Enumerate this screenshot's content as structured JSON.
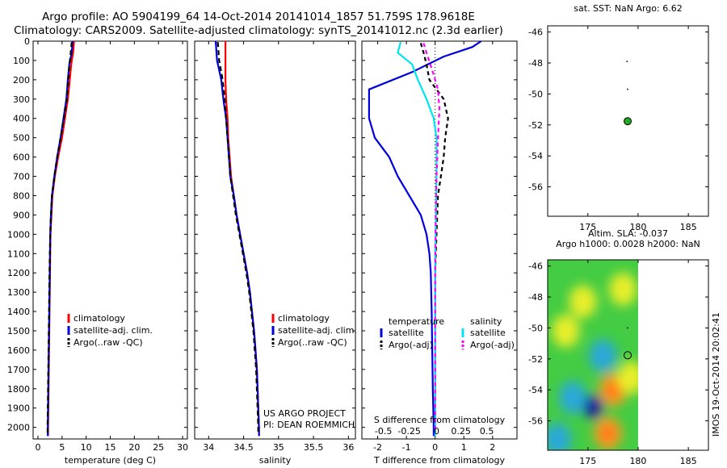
{
  "title": {
    "line1": "Argo profile: AO 5904199_64 14-Oct-2014 20141014_1857 51.759S 178.9618E",
    "line2": "Climatology: CARS2009. Satellite-adjusted climatology: synTS_20141012.nc (2.3d earlier)"
  },
  "colors": {
    "climatology": "#ff0000",
    "satellite": "#0000dd",
    "argo": "#000000",
    "sat_salinity": "#00e5ee",
    "argo_salinity": "#ff00ff"
  },
  "depth_axis": {
    "ylim": [
      0,
      2060
    ],
    "ticks": [
      0,
      100,
      200,
      300,
      400,
      500,
      600,
      700,
      800,
      900,
      1000,
      1100,
      1200,
      1300,
      1400,
      1500,
      1600,
      1700,
      1800,
      1900,
      2000
    ]
  },
  "chart_data": [
    {
      "id": "temperature",
      "type": "line",
      "xlabel": "temperature (deg C)",
      "xlim": [
        -1,
        31
      ],
      "xticks": [
        0,
        5,
        10,
        15,
        20,
        25,
        30
      ],
      "xtick_labels": [
        "0",
        "5",
        "10",
        "15",
        "20",
        "25",
        "30"
      ],
      "legend": {
        "placement": "bottom-center",
        "entries": [
          "climatology",
          "satellite-adj. clim.",
          "Argo(..raw -QC)"
        ]
      },
      "series": [
        {
          "name": "climatology",
          "color": "#ff0000",
          "dash": "",
          "points": [
            [
              7.5,
              0
            ],
            [
              7.3,
              60
            ],
            [
              6.9,
              120
            ],
            [
              6.6,
              200
            ],
            [
              6.2,
              300
            ],
            [
              5.6,
              400
            ],
            [
              5.0,
              500
            ],
            [
              4.2,
              600
            ],
            [
              3.5,
              700
            ],
            [
              3.0,
              800
            ],
            [
              2.8,
              900
            ],
            [
              2.6,
              1000
            ],
            [
              2.5,
              1200
            ],
            [
              2.4,
              1400
            ],
            [
              2.3,
              1600
            ],
            [
              2.2,
              1800
            ],
            [
              2.1,
              2000
            ],
            [
              2.1,
              2045
            ]
          ]
        },
        {
          "name": "satellite-adj. clim.",
          "color": "#0000dd",
          "dash": "",
          "points": [
            [
              7.2,
              0
            ],
            [
              7.0,
              60
            ],
            [
              6.5,
              120
            ],
            [
              6.2,
              200
            ],
            [
              5.9,
              300
            ],
            [
              5.3,
              400
            ],
            [
              4.7,
              500
            ],
            [
              4.0,
              600
            ],
            [
              3.4,
              700
            ],
            [
              2.9,
              800
            ],
            [
              2.7,
              900
            ],
            [
              2.55,
              1000
            ],
            [
              2.45,
              1200
            ],
            [
              2.35,
              1400
            ],
            [
              2.25,
              1600
            ],
            [
              2.15,
              1800
            ],
            [
              2.05,
              2000
            ],
            [
              2.05,
              2045
            ]
          ]
        },
        {
          "name": "Argo(..raw -QC)",
          "color": "#000000",
          "dash": "6,4",
          "points": [
            [
              7.0,
              5
            ],
            [
              6.8,
              60
            ],
            [
              6.5,
              130
            ],
            [
              6.3,
              200
            ],
            [
              6.0,
              300
            ],
            [
              5.4,
              400
            ],
            [
              4.7,
              500
            ],
            [
              4.0,
              600
            ],
            [
              3.4,
              700
            ],
            [
              2.9,
              800
            ],
            [
              2.7,
              900
            ],
            [
              2.55,
              1000
            ],
            [
              2.4,
              1200
            ],
            [
              2.3,
              1400
            ],
            [
              2.2,
              1600
            ],
            [
              2.1,
              1800
            ],
            [
              2.0,
              2000
            ],
            [
              2.0,
              2030
            ]
          ]
        }
      ]
    },
    {
      "id": "salinity",
      "type": "line",
      "xlabel": "salinity",
      "xlim": [
        33.8,
        36.1
      ],
      "xticks": [
        34,
        34.5,
        35,
        35.5,
        36
      ],
      "xtick_labels": [
        "34",
        "34.5",
        "35",
        "35.5",
        "36"
      ],
      "legend": {
        "placement": "bottom-center",
        "entries": [
          "climatology",
          "satellite-adj. clim.",
          "Argo(..raw -QC)"
        ]
      },
      "annotation": [
        "US ARGO PROJECT",
        "PI: DEAN ROEMMICH"
      ],
      "series": [
        {
          "name": "climatology",
          "color": "#ff0000",
          "dash": "",
          "points": [
            [
              34.24,
              0
            ],
            [
              34.24,
              100
            ],
            [
              34.24,
              200
            ],
            [
              34.25,
              300
            ],
            [
              34.27,
              400
            ],
            [
              34.28,
              500
            ],
            [
              34.3,
              600
            ],
            [
              34.32,
              700
            ],
            [
              34.36,
              800
            ],
            [
              34.4,
              900
            ],
            [
              34.45,
              1000
            ],
            [
              34.5,
              1100
            ],
            [
              34.55,
              1200
            ],
            [
              34.59,
              1300
            ],
            [
              34.62,
              1400
            ],
            [
              34.65,
              1500
            ],
            [
              34.67,
              1600
            ],
            [
              34.69,
              1700
            ],
            [
              34.7,
              1800
            ],
            [
              34.71,
              1900
            ],
            [
              34.72,
              2000
            ],
            [
              34.72,
              2045
            ]
          ]
        },
        {
          "name": "satellite-adj. clim.",
          "color": "#0000dd",
          "dash": "",
          "points": [
            [
              34.1,
              0
            ],
            [
              34.12,
              100
            ],
            [
              34.18,
              200
            ],
            [
              34.21,
              300
            ],
            [
              34.25,
              400
            ],
            [
              34.27,
              500
            ],
            [
              34.29,
              600
            ],
            [
              34.31,
              700
            ],
            [
              34.36,
              800
            ],
            [
              34.4,
              900
            ],
            [
              34.45,
              1000
            ],
            [
              34.5,
              1100
            ],
            [
              34.55,
              1200
            ],
            [
              34.59,
              1300
            ],
            [
              34.62,
              1400
            ],
            [
              34.65,
              1500
            ],
            [
              34.67,
              1600
            ],
            [
              34.69,
              1700
            ],
            [
              34.7,
              1800
            ],
            [
              34.71,
              1900
            ],
            [
              34.72,
              2000
            ],
            [
              34.72,
              2045
            ]
          ]
        },
        {
          "name": "Argo(..raw -QC)",
          "color": "#000000",
          "dash": "6,4",
          "points": [
            [
              34.13,
              5
            ],
            [
              34.15,
              100
            ],
            [
              34.2,
              200
            ],
            [
              34.23,
              300
            ],
            [
              34.25,
              400
            ],
            [
              34.27,
              500
            ],
            [
              34.29,
              600
            ],
            [
              34.31,
              700
            ],
            [
              34.35,
              800
            ],
            [
              34.39,
              900
            ],
            [
              34.44,
              1000
            ],
            [
              34.49,
              1100
            ],
            [
              34.54,
              1200
            ],
            [
              34.58,
              1300
            ],
            [
              34.61,
              1400
            ],
            [
              34.64,
              1500
            ],
            [
              34.66,
              1600
            ],
            [
              34.68,
              1700
            ],
            [
              34.69,
              1800
            ],
            [
              34.7,
              1900
            ],
            [
              34.71,
              2000
            ],
            [
              34.71,
              2030
            ]
          ]
        }
      ]
    },
    {
      "id": "difference",
      "type": "line",
      "xlim": [
        -2.55,
        2.85
      ],
      "xlabel": "T difference from climatology",
      "xlabel_top": "S difference from climatology",
      "xticks": [
        -2,
        -1,
        0,
        1,
        2
      ],
      "xtick_labels": [
        "-2",
        "-1",
        "0",
        "1",
        "2"
      ],
      "top_ticks": [
        -0.5,
        -0.25,
        0,
        0.25,
        0.5
      ],
      "top_tick_positions": [
        -1.8,
        -0.9,
        0.05,
        0.9,
        1.8
      ],
      "legend": {
        "placement": "bottom-center",
        "groups": [
          {
            "title": "temperature",
            "entries": [
              "satellite",
              "Argo(-adj)"
            ]
          },
          {
            "title": "salinity",
            "entries": [
              "satellite",
              "Argo(-adj)"
            ]
          }
        ]
      },
      "series": [
        {
          "name": "temperature satellite",
          "color": "#0000dd",
          "dash": "",
          "points": [
            [
              1.6,
              0
            ],
            [
              1.3,
              30
            ],
            [
              0.3,
              80
            ],
            [
              -0.8,
              160
            ],
            [
              -2.3,
              250
            ],
            [
              -2.3,
              400
            ],
            [
              -2.1,
              500
            ],
            [
              -1.6,
              600
            ],
            [
              -1.3,
              700
            ],
            [
              -0.9,
              800
            ],
            [
              -0.5,
              900
            ],
            [
              -0.3,
              1000
            ],
            [
              -0.2,
              1100
            ],
            [
              -0.15,
              1200
            ],
            [
              -0.12,
              1400
            ],
            [
              -0.1,
              1600
            ],
            [
              -0.08,
              1800
            ],
            [
              -0.05,
              2000
            ],
            [
              -0.05,
              2045
            ]
          ]
        },
        {
          "name": "temperature Argo(-adj)",
          "color": "#000000",
          "dash": "5,4",
          "points": [
            [
              -0.5,
              10
            ],
            [
              -0.4,
              60
            ],
            [
              -0.3,
              120
            ],
            [
              -0.2,
              200
            ],
            [
              0.3,
              300
            ],
            [
              0.45,
              400
            ],
            [
              0.35,
              500
            ],
            [
              0.3,
              600
            ],
            [
              0.2,
              700
            ],
            [
              0.1,
              800
            ],
            [
              0.05,
              1000
            ],
            [
              0,
              1200
            ],
            [
              0,
              1500
            ],
            [
              0,
              1800
            ],
            [
              0,
              2030
            ]
          ]
        },
        {
          "name": "salinity satellite",
          "color": "#00e5ee",
          "dash": "",
          "points": [
            [
              -1.2,
              5
            ],
            [
              -1.3,
              60
            ],
            [
              -0.8,
              120
            ],
            [
              -0.6,
              200
            ],
            [
              -0.3,
              300
            ],
            [
              -0.05,
              400
            ],
            [
              0.05,
              500
            ],
            [
              0.05,
              700
            ],
            [
              0.03,
              900
            ],
            [
              0,
              1100
            ],
            [
              0,
              1400
            ],
            [
              0,
              1700
            ],
            [
              0,
              2000
            ],
            [
              0,
              2045
            ]
          ]
        },
        {
          "name": "salinity Argo(-adj)",
          "color": "#ff00ff",
          "dash": "5,4",
          "points": [
            [
              -0.4,
              10
            ],
            [
              -0.3,
              60
            ],
            [
              -0.1,
              150
            ],
            [
              0.1,
              250
            ],
            [
              0.15,
              350
            ],
            [
              0.1,
              500
            ],
            [
              0.05,
              700
            ],
            [
              0.02,
              900
            ],
            [
              0,
              1200
            ],
            [
              0,
              1600
            ],
            [
              0,
              2030
            ]
          ]
        }
      ]
    },
    {
      "id": "sst_map",
      "type": "scatter",
      "title": "sat. SST: NaN Argo: 6.62",
      "xlim": [
        171,
        187
      ],
      "ylim": [
        -57.9,
        -45.6
      ],
      "xticks": [
        175,
        180,
        185
      ],
      "yticks": [
        -46,
        -48,
        -50,
        -52,
        -54,
        -56
      ],
      "profile": {
        "lon": 178.96,
        "lat": -51.76,
        "marker": "filled-circle",
        "color": "#22aa22"
      },
      "track": [
        [
          178.9,
          -47.9
        ],
        [
          178.95,
          -49.7
        ]
      ]
    },
    {
      "id": "sla_map",
      "type": "heatmap",
      "title": [
        "Altim. SLA: -0.037",
        "Argo h1000: 0.0028 h2000: NaN"
      ],
      "xlim": [
        171,
        187
      ],
      "ylim": [
        -57.9,
        -45.6
      ],
      "xticks": [
        175,
        180,
        185
      ],
      "yticks": [
        -46,
        -48,
        -50,
        -52,
        -54,
        -56
      ],
      "field_extent_lon": [
        171,
        180
      ],
      "profile": {
        "lon": 178.96,
        "lat": -51.76,
        "marker": "open-circle",
        "color": "#000000"
      },
      "track": [
        [
          178.95,
          -50
        ]
      ],
      "features": [
        {
          "lon": 175.5,
          "lat": -55.1,
          "value": -0.6
        },
        {
          "lon": 173.5,
          "lat": -54.5,
          "value": -0.15
        },
        {
          "lon": 176.5,
          "lat": -51.8,
          "value": -0.2
        },
        {
          "lon": 177.5,
          "lat": -54.0,
          "value": 0.3
        },
        {
          "lon": 177.0,
          "lat": -56.8,
          "value": 0.3
        },
        {
          "lon": 172.8,
          "lat": -50.2,
          "value": 0.2
        },
        {
          "lon": 178.5,
          "lat": -47.5,
          "value": 0.15
        },
        {
          "lon": 174.5,
          "lat": -48.3,
          "value": 0.1
        },
        {
          "lon": 179.3,
          "lat": -53.2,
          "value": 0.25
        },
        {
          "lon": 172.0,
          "lat": -57.2,
          "value": -0.2
        }
      ]
    }
  ],
  "side_label": "IMOS 19-Oct-2014 20:02:41"
}
